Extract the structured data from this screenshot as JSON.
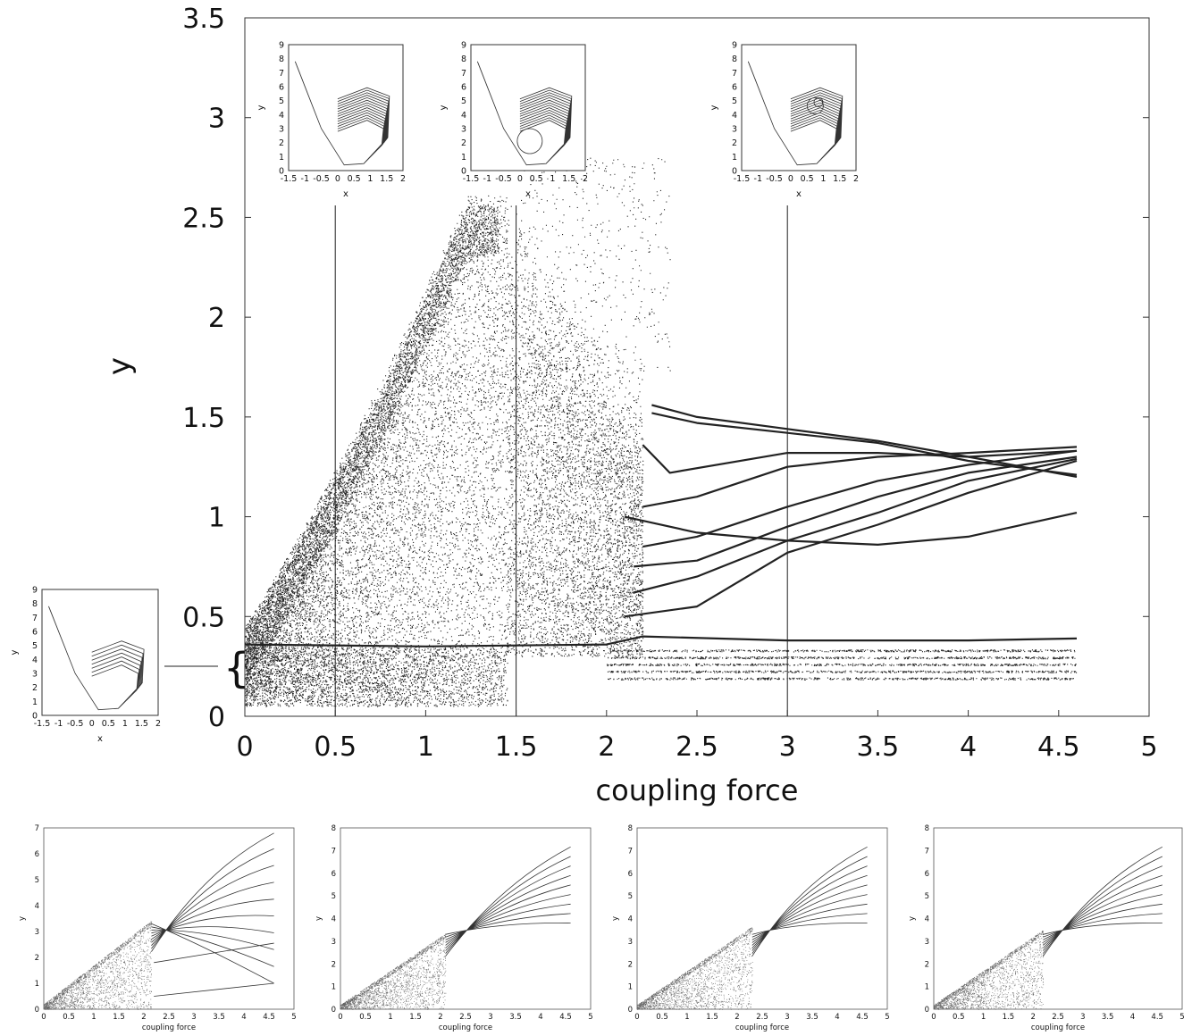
{
  "main_chart": {
    "xlabel": "coupling force",
    "ylabel": "y",
    "xticks": [
      "0",
      "0.5",
      "1",
      "1.5",
      "2",
      "2.5",
      "3",
      "3.5",
      "4",
      "4.5",
      "5"
    ],
    "yticks": [
      "0",
      "0.5",
      "1",
      "1.5",
      "2",
      "2.5",
      "3",
      "3.5"
    ],
    "bracket": "{"
  },
  "insets": {
    "xlabel": "x",
    "ylabel": "y",
    "xticks": [
      "-1.5",
      "-1",
      "-0.5",
      "0",
      "0.5",
      "1",
      "1.5",
      "2"
    ],
    "yticks": [
      "0",
      "1",
      "2",
      "3",
      "4",
      "5",
      "6",
      "7",
      "8",
      "9"
    ]
  },
  "small_charts": {
    "xlabel": "coupling force",
    "ylabel": "y",
    "xticks": [
      "0",
      "0.5",
      "1",
      "1.5",
      "2",
      "2.5",
      "3",
      "3.5",
      "4",
      "4.5",
      "5"
    ],
    "yticks_a": [
      "0",
      "1",
      "2",
      "3",
      "4",
      "5",
      "6",
      "7"
    ],
    "yticks_b": [
      "0",
      "1",
      "2",
      "3",
      "4",
      "5",
      "6",
      "7",
      "8"
    ]
  },
  "chart_data": [
    {
      "type": "scatter",
      "title": "",
      "xlabel": "coupling force",
      "ylabel": "y",
      "xlim": [
        0,
        5
      ],
      "ylim": [
        0,
        3.5
      ],
      "grid": false,
      "markers_at_x": [
        0.5,
        1.5,
        3.0
      ],
      "note_values": {
        "chaotic_band_upper_edge_at_1_4": 2.55,
        "baseline_branch_y": 0.36
      },
      "series": [
        {
          "x": [
            2.25,
            2.5,
            3.0,
            3.5,
            4.0,
            4.6
          ],
          "y": [
            1.56,
            1.5,
            1.44,
            1.38,
            1.3,
            1.2
          ]
        },
        {
          "x": [
            2.25,
            2.5,
            3.0,
            3.5,
            4.0,
            4.6
          ],
          "y": [
            1.52,
            1.47,
            1.42,
            1.37,
            1.28,
            1.21
          ]
        },
        {
          "x": [
            2.2,
            2.35,
            3.0,
            3.5,
            4.0,
            4.6
          ],
          "y": [
            1.36,
            1.22,
            1.32,
            1.32,
            1.3,
            1.33
          ]
        },
        {
          "x": [
            2.2,
            2.5,
            3.0,
            3.5,
            4.0,
            4.6
          ],
          "y": [
            1.05,
            1.1,
            1.25,
            1.3,
            1.32,
            1.35
          ]
        },
        {
          "x": [
            2.2,
            2.5,
            3.0,
            3.5,
            4.0,
            4.6
          ],
          "y": [
            0.85,
            0.9,
            1.05,
            1.18,
            1.26,
            1.33
          ]
        },
        {
          "x": [
            2.15,
            2.5,
            3.0,
            3.5,
            4.0,
            4.6
          ],
          "y": [
            0.75,
            0.78,
            0.95,
            1.1,
            1.22,
            1.3
          ]
        },
        {
          "x": [
            2.15,
            2.5,
            3.0,
            3.5,
            4.0,
            4.6
          ],
          "y": [
            0.62,
            0.7,
            0.88,
            1.02,
            1.18,
            1.29
          ]
        },
        {
          "x": [
            2.1,
            2.5,
            3.0,
            3.5,
            4.0,
            4.6
          ],
          "y": [
            0.5,
            0.55,
            0.82,
            0.96,
            1.12,
            1.28
          ]
        },
        {
          "x": [
            2.1,
            2.5,
            3.0,
            3.5,
            4.0,
            4.6
          ],
          "y": [
            1.0,
            0.92,
            0.88,
            0.86,
            0.9,
            1.02
          ]
        },
        {
          "x": [
            0.0,
            1.0,
            2.0,
            2.2,
            3.0,
            4.0,
            4.6
          ],
          "y": [
            0.36,
            0.35,
            0.36,
            0.4,
            0.38,
            0.38,
            0.39
          ]
        }
      ]
    }
  ]
}
